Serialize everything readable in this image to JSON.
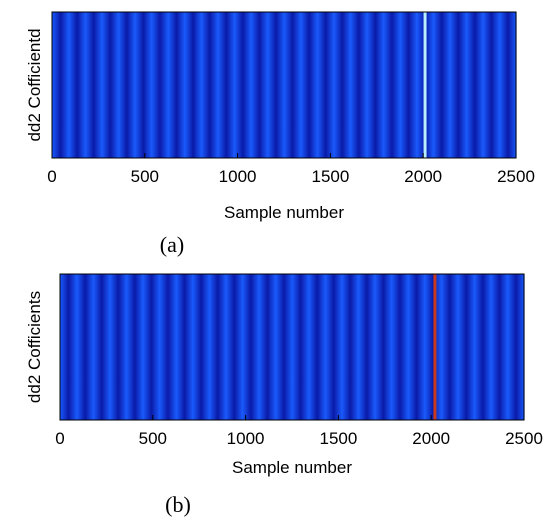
{
  "chart_data": [
    {
      "type": "heatmap",
      "caption": "(a)",
      "xlabel": "Sample number",
      "ylabel": "dd2 Cofficientd",
      "xlim": [
        0,
        2500
      ],
      "xticks": [
        0,
        500,
        1000,
        1500,
        2000,
        2500
      ],
      "grid": false,
      "stripe_count": 28,
      "highlight": {
        "x": 2010,
        "color": "#b8f0ff"
      },
      "colors": {
        "band_light": "#1a5cff",
        "band_dark": "#0a1aa8"
      }
    },
    {
      "type": "heatmap",
      "caption": "(b)",
      "xlabel": "Sample number",
      "ylabel": "dd2 Cofficients",
      "xlim": [
        0,
        2500
      ],
      "xticks": [
        0,
        500,
        1000,
        1500,
        2000,
        2500
      ],
      "grid": false,
      "stripe_count": 28,
      "highlight": {
        "x": 2020,
        "color": "#c83a1e"
      },
      "colors": {
        "band_light": "#1a5cff",
        "band_dark": "#0a1aa8"
      }
    }
  ]
}
